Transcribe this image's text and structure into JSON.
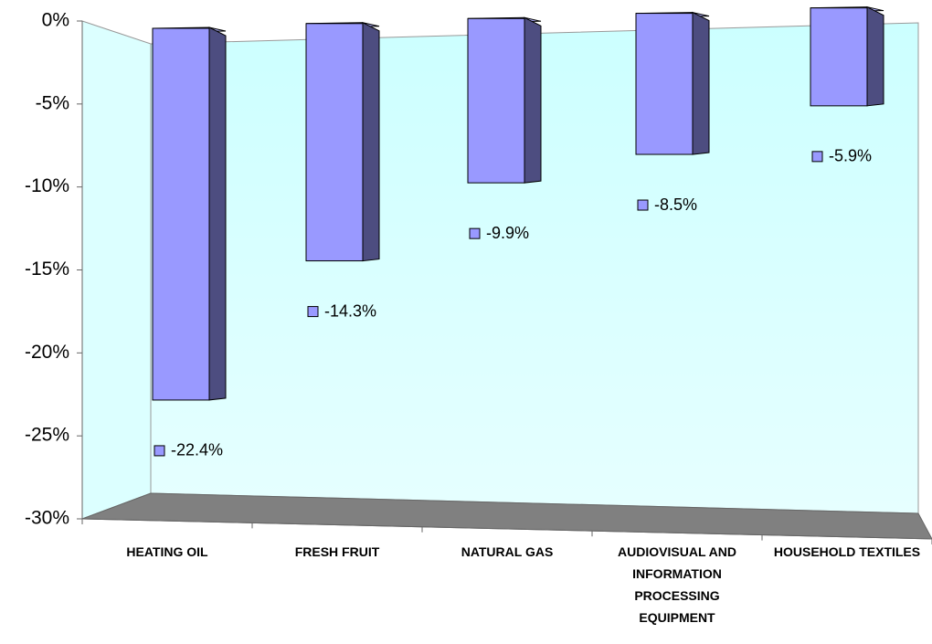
{
  "chart_data": {
    "type": "bar",
    "categories": [
      "HEATING OIL",
      "FRESH FRUIT",
      "NATURAL GAS",
      "AUDIOVISUAL AND INFORMATION PROCESSING EQUIPMENT",
      "HOUSEHOLD TEXTILES"
    ],
    "values": [
      -22.4,
      -14.3,
      -9.9,
      -8.5,
      -5.9
    ],
    "value_labels": [
      "-22.4%",
      "-14.3%",
      "-9.9%",
      "-8.5%",
      "-5.9%"
    ],
    "color": "#9999ff",
    "ylim": [
      -30,
      0
    ],
    "yticks": [
      {
        "value": 0,
        "label": "0%"
      },
      {
        "value": -5,
        "label": "-5%"
      },
      {
        "value": -10,
        "label": "-10%"
      },
      {
        "value": -15,
        "label": "-15%"
      },
      {
        "value": -20,
        "label": "-20%"
      },
      {
        "value": -25,
        "label": "-25%"
      },
      {
        "value": -30,
        "label": "-30%"
      }
    ]
  }
}
